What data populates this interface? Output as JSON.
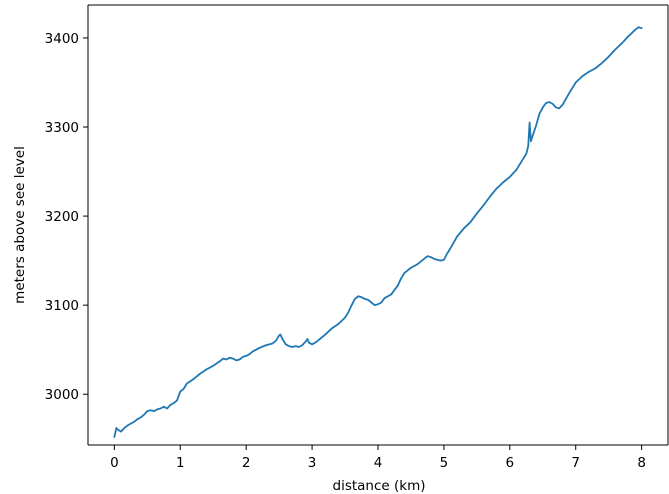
{
  "chart_data": {
    "type": "line",
    "title": "",
    "xlabel": "distance (km)",
    "ylabel": "meters above see level",
    "xlim": [
      -0.4,
      8.4
    ],
    "ylim": [
      2943,
      3437
    ],
    "xticks": [
      0,
      1,
      2,
      3,
      4,
      5,
      6,
      7,
      8
    ],
    "yticks": [
      3000,
      3100,
      3200,
      3300,
      3400
    ],
    "grid": false,
    "colors": {
      "line": "#1f77b4",
      "axes": "#000000",
      "background": "#ffffff"
    },
    "series": [
      {
        "x": [
          0.0,
          0.03,
          0.06,
          0.1,
          0.15,
          0.2,
          0.25,
          0.3,
          0.35,
          0.4,
          0.45,
          0.5,
          0.55,
          0.6,
          0.65,
          0.7,
          0.75,
          0.8,
          0.85,
          0.9,
          0.95,
          1.0,
          1.05,
          1.1,
          1.2,
          1.3,
          1.4,
          1.5,
          1.6,
          1.65,
          1.7,
          1.75,
          1.8,
          1.85,
          1.9,
          1.95,
          2.0,
          2.05,
          2.1,
          2.2,
          2.3,
          2.4,
          2.45,
          2.5,
          2.52,
          2.55,
          2.6,
          2.65,
          2.7,
          2.75,
          2.8,
          2.85,
          2.9,
          2.93,
          2.95,
          3.0,
          3.05,
          3.1,
          3.2,
          3.3,
          3.4,
          3.5,
          3.55,
          3.6,
          3.65,
          3.7,
          3.75,
          3.8,
          3.85,
          3.9,
          3.95,
          4.0,
          4.05,
          4.1,
          4.2,
          4.3,
          4.35,
          4.4,
          4.5,
          4.6,
          4.7,
          4.75,
          4.8,
          4.85,
          4.9,
          4.95,
          5.0,
          5.05,
          5.1,
          5.2,
          5.3,
          5.4,
          5.5,
          5.6,
          5.7,
          5.8,
          5.9,
          6.0,
          6.1,
          6.2,
          6.25,
          6.28,
          6.3,
          6.32,
          6.35,
          6.4,
          6.45,
          6.5,
          6.55,
          6.6,
          6.65,
          6.7,
          6.75,
          6.8,
          6.9,
          7.0,
          7.1,
          7.2,
          7.3,
          7.4,
          7.5,
          7.6,
          7.7,
          7.8,
          7.9,
          7.95,
          8.0
        ],
        "y": [
          2952,
          2962,
          2960,
          2958,
          2962,
          2965,
          2967,
          2969,
          2972,
          2974,
          2977,
          2981,
          2982,
          2981,
          2983,
          2984,
          2986,
          2984,
          2988,
          2990,
          2993,
          3003,
          3006,
          3012,
          3017,
          3023,
          3028,
          3032,
          3037,
          3040,
          3039,
          3041,
          3040,
          3038,
          3039,
          3042,
          3043,
          3045,
          3048,
          3052,
          3055,
          3057,
          3060,
          3066,
          3067,
          3062,
          3056,
          3054,
          3053,
          3054,
          3053,
          3055,
          3059,
          3062,
          3058,
          3056,
          3058,
          3061,
          3067,
          3074,
          3079,
          3086,
          3092,
          3100,
          3107,
          3110,
          3109,
          3107,
          3106,
          3103,
          3100,
          3101,
          3103,
          3108,
          3112,
          3122,
          3130,
          3136,
          3142,
          3146,
          3152,
          3155,
          3154,
          3152,
          3151,
          3150,
          3151,
          3158,
          3164,
          3177,
          3186,
          3193,
          3203,
          3212,
          3222,
          3231,
          3238,
          3244,
          3252,
          3264,
          3270,
          3279,
          3305,
          3284,
          3291,
          3302,
          3315,
          3322,
          3327,
          3328,
          3326,
          3322,
          3321,
          3325,
          3338,
          3350,
          3357,
          3362,
          3366,
          3372,
          3379,
          3387,
          3394,
          3402,
          3409,
          3412,
          3411
        ]
      }
    ]
  }
}
